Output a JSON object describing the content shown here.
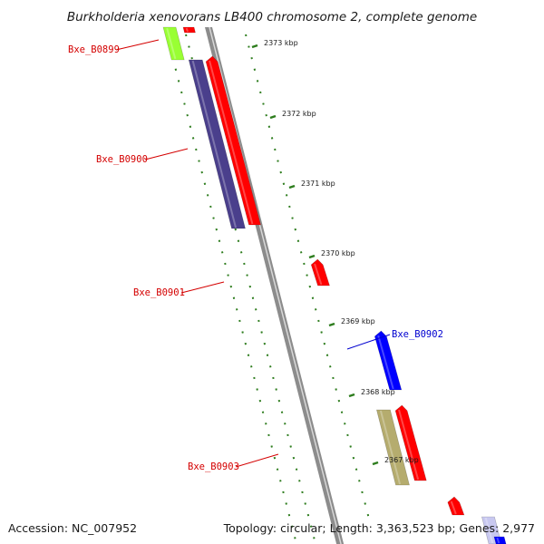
{
  "title": "Burkholderia xenovorans LB400 chromosome 2, complete genome",
  "footer": {
    "accession": "Accession: NC_007952",
    "summary": "Topology: circular; Length: 3,363,523 bp; Genes: 2,977"
  },
  "colors": {
    "backbone": "#8c8c8c",
    "tick": "#2e7d1e",
    "label_red": "#d40000",
    "label_blue": "#0000d0"
  },
  "ticks": [
    {
      "label": "2373 kbp"
    },
    {
      "label": "2372 kbp"
    },
    {
      "label": "2371 kbp"
    },
    {
      "label": "2370 kbp"
    },
    {
      "label": "2369 kbp"
    },
    {
      "label": "2368 kbp"
    },
    {
      "label": "2367 kbp"
    }
  ],
  "gene_labels": [
    {
      "text": "Bxe_B0899",
      "color": "#d40000"
    },
    {
      "text": "Bxe_B0900",
      "color": "#d40000"
    },
    {
      "text": "Bxe_B0901",
      "color": "#d40000"
    },
    {
      "text": "Bxe_B0902",
      "color": "#0000d0"
    },
    {
      "text": "Bxe_B0903",
      "color": "#d40000"
    }
  ],
  "features": [
    {
      "type": "gene",
      "color": "#99ff33"
    },
    {
      "type": "cds",
      "color": "#ff0000"
    },
    {
      "type": "gene",
      "color": "#4a3f8c"
    },
    {
      "type": "cds",
      "color": "#ff0000"
    },
    {
      "type": "cds",
      "color": "#ff0000"
    },
    {
      "type": "cds",
      "color": "#0000ff"
    },
    {
      "type": "gene",
      "color": "#b5ac6e"
    },
    {
      "type": "cds",
      "color": "#ff0000"
    },
    {
      "type": "cds",
      "color": "#ff0000"
    },
    {
      "type": "gene",
      "color": "#c8c8f0"
    },
    {
      "type": "cds",
      "color": "#0000ff"
    }
  ]
}
